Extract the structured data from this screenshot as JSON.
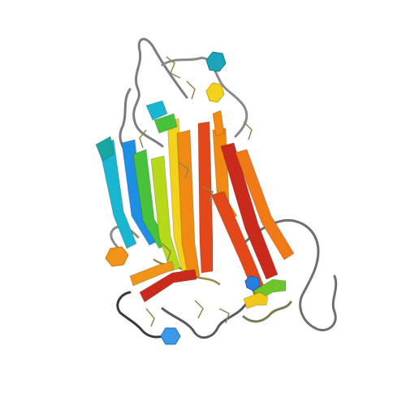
{
  "image": {
    "background_color": "#ffffff",
    "rendering_style": "cartoon ribbon",
    "color_scheme": "rainbow",
    "palette": {
      "blue": "#1f8fe6",
      "cyan": "#19b6d2",
      "teal": "#1aa6a0",
      "green": "#48c23a",
      "yellowgreen": "#b6d919",
      "yellow": "#f2d21b",
      "orange": "#f08a12",
      "redorange": "#e2481a",
      "red": "#c92a1c",
      "coil": "#8a8a8a",
      "coil_dark": "#4a4a4a",
      "stick": "#9a8f5a"
    },
    "elements": [
      "beta-strands",
      "coil-loops",
      "ligand-hexagons",
      "side-chain-sticks"
    ]
  }
}
